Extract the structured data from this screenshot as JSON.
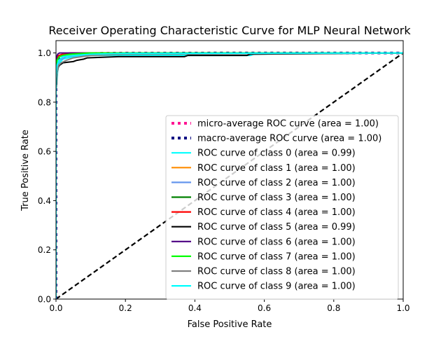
{
  "chart_data": {
    "type": "line",
    "title": "Receiver Operating Characteristic Curve for MLP Neural Network",
    "xlabel": "False Positive Rate",
    "ylabel": "True Positive Rate",
    "xlim": [
      0.0,
      1.0
    ],
    "ylim": [
      0.0,
      1.05
    ],
    "xticks": [
      "0.0",
      "0.2",
      "0.4",
      "0.6",
      "0.8",
      "1.0"
    ],
    "yticks": [
      "0.0",
      "0.2",
      "0.4",
      "0.6",
      "0.8",
      "1.0"
    ],
    "grid": false,
    "legend_position": "lower right",
    "series": [
      {
        "name": "micro-average ROC curve (area = 1.00)",
        "color": "#ff1493",
        "style": "dotted",
        "x": [
          0.0,
          0.0,
          0.002,
          0.005,
          0.01,
          0.02,
          0.05,
          0.1,
          0.2,
          1.0
        ],
        "y": [
          0.0,
          0.9,
          0.95,
          0.97,
          0.98,
          0.99,
          0.995,
          0.998,
          1.0,
          1.0
        ]
      },
      {
        "name": "macro-average ROC curve (area = 1.00)",
        "color": "#000080",
        "style": "dotted",
        "x": [
          0.0,
          0.0,
          0.002,
          0.005,
          0.01,
          0.02,
          0.05,
          0.1,
          0.2,
          0.56,
          0.6,
          1.0
        ],
        "y": [
          0.0,
          0.9,
          0.95,
          0.97,
          0.98,
          0.99,
          0.995,
          0.998,
          0.999,
          1.0,
          1.0,
          1.0
        ]
      },
      {
        "name": "ROC curve of class 0 (area = 0.99)",
        "color": "#00ffff",
        "style": "solid",
        "x": [
          0.0,
          0.0,
          0.005,
          0.01,
          0.02,
          0.05,
          0.1,
          0.2,
          0.56,
          0.57,
          1.0
        ],
        "y": [
          0.0,
          0.85,
          0.93,
          0.96,
          0.975,
          0.985,
          0.99,
          0.99,
          0.99,
          0.995,
          1.0
        ]
      },
      {
        "name": "ROC curve of class 1 (area = 1.00)",
        "color": "#ff8c00",
        "style": "solid",
        "x": [
          0.0,
          0.0,
          0.003,
          0.008,
          0.02,
          0.05,
          0.1,
          1.0
        ],
        "y": [
          0.0,
          0.94,
          0.97,
          0.985,
          0.99,
          0.995,
          1.0,
          1.0
        ]
      },
      {
        "name": "ROC curve of class 2 (area = 1.00)",
        "color": "#6495ed",
        "style": "solid",
        "x": [
          0.0,
          0.0,
          0.004,
          0.01,
          0.03,
          0.06,
          0.15,
          1.0
        ],
        "y": [
          0.0,
          0.9,
          0.95,
          0.97,
          0.985,
          0.99,
          1.0,
          1.0
        ]
      },
      {
        "name": "ROC curve of class 3 (area = 1.00)",
        "color": "#008000",
        "style": "solid",
        "x": [
          0.0,
          0.0,
          0.003,
          0.01,
          0.02,
          0.05,
          0.2,
          1.0
        ],
        "y": [
          0.0,
          0.95,
          0.975,
          0.99,
          0.995,
          0.998,
          1.0,
          1.0
        ]
      },
      {
        "name": "ROC curve of class 4 (area = 1.00)",
        "color": "#ff0000",
        "style": "solid",
        "x": [
          0.0,
          0.0,
          0.002,
          0.008,
          0.02,
          0.04,
          1.0
        ],
        "y": [
          0.0,
          0.96,
          0.98,
          0.99,
          0.995,
          1.0,
          1.0
        ]
      },
      {
        "name": "ROC curve of class 5 (area = 0.99)",
        "color": "#000000",
        "style": "solid",
        "x": [
          0.0,
          0.0,
          0.003,
          0.006,
          0.01,
          0.02,
          0.05,
          0.06,
          0.08,
          0.09,
          0.18,
          0.37,
          0.38,
          0.55,
          0.56,
          1.0
        ],
        "y": [
          0.0,
          0.85,
          0.92,
          0.94,
          0.95,
          0.96,
          0.965,
          0.97,
          0.975,
          0.98,
          0.985,
          0.985,
          0.99,
          0.99,
          0.995,
          1.0
        ]
      },
      {
        "name": "ROC curve of class 6 (area = 1.00)",
        "color": "#4b0082",
        "style": "solid",
        "x": [
          0.0,
          0.0,
          0.002,
          0.005,
          0.01,
          1.0
        ],
        "y": [
          0.0,
          0.97,
          0.985,
          0.995,
          1.0,
          1.0
        ]
      },
      {
        "name": "ROC curve of class 7 (area = 1.00)",
        "color": "#00ff00",
        "style": "solid",
        "x": [
          0.0,
          0.0,
          0.003,
          0.01,
          0.02,
          0.04,
          0.1,
          1.0
        ],
        "y": [
          0.0,
          0.93,
          0.97,
          0.985,
          0.99,
          0.995,
          1.0,
          1.0
        ]
      },
      {
        "name": "ROC curve of class 8 (area = 1.00)",
        "color": "#808080",
        "style": "solid",
        "x": [
          0.0,
          0.0,
          0.004,
          0.008,
          0.015,
          0.03,
          0.05,
          0.1,
          0.2,
          1.0
        ],
        "y": [
          0.0,
          0.88,
          0.93,
          0.95,
          0.96,
          0.97,
          0.98,
          0.99,
          0.995,
          1.0
        ]
      },
      {
        "name": "ROC curve of class 9 (area = 1.00)",
        "color": "#00ffff",
        "style": "solid",
        "x": [
          0.0,
          0.0,
          0.003,
          0.008,
          0.02,
          0.05,
          0.1,
          0.2,
          1.0
        ],
        "y": [
          0.0,
          0.91,
          0.95,
          0.97,
          0.985,
          0.99,
          0.995,
          0.998,
          1.0
        ]
      }
    ],
    "reference_line": {
      "color": "#000000",
      "style": "dashed",
      "x": [
        0.0,
        1.0
      ],
      "y": [
        0.0,
        1.0
      ]
    }
  }
}
